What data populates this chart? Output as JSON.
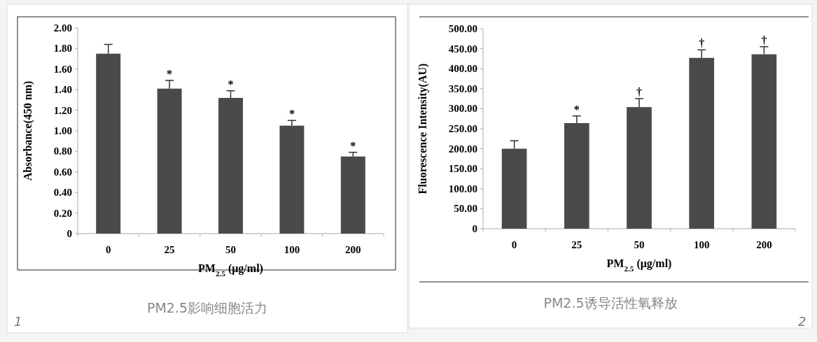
{
  "chart_data": [
    {
      "type": "bar",
      "categories": [
        "0",
        "25",
        "50",
        "100",
        "200"
      ],
      "xlabel": "PM$_{2.5}$ (μg/ml)",
      "ylabel": "Absorbance(450 nm)",
      "series": [
        {
          "color": "#4a4a4a",
          "values": [
            1.75,
            1.41,
            1.32,
            1.05,
            0.75
          ],
          "errors": [
            [
              1.75,
              1.84
            ],
            [
              1.41,
              1.49
            ],
            [
              1.32,
              1.39
            ],
            [
              1.05,
              1.1
            ],
            [
              0.75,
              0.79
            ]
          ]
        }
      ],
      "ylim": [
        0,
        2
      ],
      "yticks": [
        {
          "value": 0,
          "label": "0"
        },
        {
          "value": 0.2,
          "label": "0.20"
        },
        {
          "value": 0.4,
          "label": "0.40"
        },
        {
          "value": 0.6,
          "label": "0.60"
        },
        {
          "value": 0.8,
          "label": "0.80"
        },
        {
          "value": 1,
          "label": "1.00"
        },
        {
          "value": 1.2,
          "label": "1.20"
        },
        {
          "value": 1.4,
          "label": "1.40"
        },
        {
          "value": 1.6,
          "label": "1.60"
        },
        {
          "value": 1.8,
          "label": "1.80"
        },
        {
          "value": 2,
          "label": "2.00"
        }
      ],
      "annotations": [
        {
          "text": "*",
          "x": "25",
          "y": 1.49
        },
        {
          "text": "*",
          "x": "50",
          "y": 1.39
        },
        {
          "text": "*",
          "x": "100",
          "y": 1.1
        },
        {
          "text": "*",
          "x": "200",
          "y": 0.79
        },
        "PM2.5影响细胞活力",
        "1"
      ]
    },
    {
      "type": "bar",
      "categories": [
        "0",
        "25",
        "50",
        "100",
        "200"
      ],
      "xlabel": "PM$_{2.5}$ (μg/ml)",
      "ylabel": "Fluorescence Intensity(AU)",
      "series": [
        {
          "color": "#4a4a4a",
          "values": [
            200,
            264,
            304,
            427,
            436
          ],
          "errors": [
            [
              200,
              220
            ],
            [
              264,
              282
            ],
            [
              304,
              325
            ],
            [
              427,
              447
            ],
            [
              436,
              455
            ]
          ]
        }
      ],
      "ylim": [
        0,
        500
      ],
      "yticks": [
        {
          "value": 0,
          "label": "0"
        },
        {
          "value": 50,
          "label": "50.00"
        },
        {
          "value": 100,
          "label": "100.00"
        },
        {
          "value": 150,
          "label": "150.00"
        },
        {
          "value": 200,
          "label": "200.00"
        },
        {
          "value": 250,
          "label": "250.00"
        },
        {
          "value": 300,
          "label": "300.00"
        },
        {
          "value": 350,
          "label": "350.00"
        },
        {
          "value": 400,
          "label": "400.00"
        },
        {
          "value": 450,
          "label": "450.00"
        },
        {
          "value": 500,
          "label": "500.00"
        }
      ],
      "annotations": [
        {
          "text": "*",
          "x": "25",
          "y": 282
        },
        {
          "text": "†",
          "x": "50",
          "y": 325
        },
        {
          "text": "†",
          "x": "100",
          "y": 447
        },
        {
          "text": "†",
          "x": "200",
          "y": 455
        },
        "PM2.5诱导活性氧释放",
        "2"
      ]
    }
  ]
}
